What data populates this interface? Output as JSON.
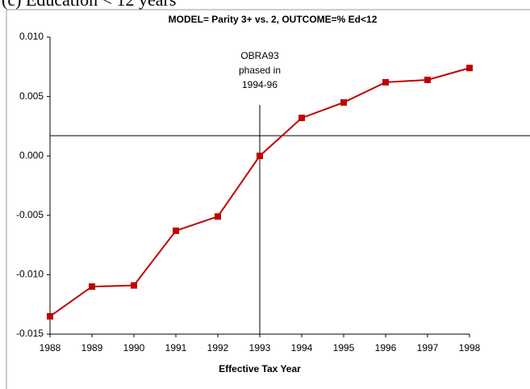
{
  "heading": "(c) Education < 12 years",
  "chart_data": {
    "type": "line",
    "title": "MODEL= Parity 3+ vs. 2, OUTCOME=% Ed<12",
    "x_label": "Effective Tax Year",
    "x": [
      1988,
      1989,
      1990,
      1991,
      1992,
      1993,
      1994,
      1995,
      1996,
      1997,
      1998
    ],
    "series": [
      {
        "name": "Parity 3+ vs. 2",
        "color": "#c00000",
        "values": [
          -0.0135,
          -0.011,
          -0.0109,
          -0.0063,
          -0.0051,
          0.0,
          0.0032,
          0.0045,
          0.0062,
          0.0064,
          0.0074
        ]
      }
    ],
    "xlim": [
      1988,
      1998
    ],
    "xticks": [
      1988,
      1989,
      1990,
      1991,
      1992,
      1993,
      1994,
      1995,
      1996,
      1997,
      1998
    ],
    "ylim": [
      -0.015,
      0.01
    ],
    "yticks": [
      {
        "value": -0.015,
        "label": "-0.015"
      },
      {
        "value": -0.01,
        "label": "-0.010"
      },
      {
        "value": -0.005,
        "label": "-0.005"
      },
      {
        "value": 0,
        "label": "0.000"
      },
      {
        "value": 0.005,
        "label": "0.005"
      },
      {
        "value": 0.01,
        "label": "0.010"
      }
    ],
    "reference_line": 0.0017,
    "vertical_line_x": 1993,
    "annotation": [
      "OBRA93",
      "phased in",
      "1994-96"
    ]
  }
}
